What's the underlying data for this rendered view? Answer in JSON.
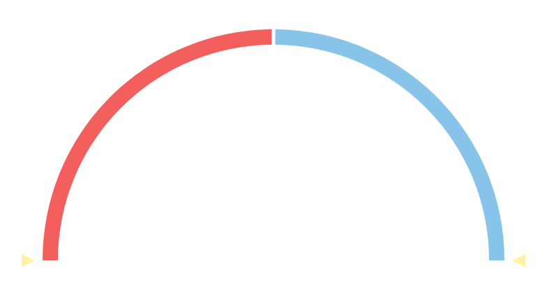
{
  "chart_data": {
    "type": "pie",
    "layout": "half-donut",
    "start_angle_deg": 180,
    "end_angle_deg": 0,
    "slices": [
      {
        "value": 50,
        "color": "#f25f5c"
      },
      {
        "value": 50,
        "color": "#88c3ea"
      }
    ],
    "marker_color": "#fdf3a6"
  }
}
